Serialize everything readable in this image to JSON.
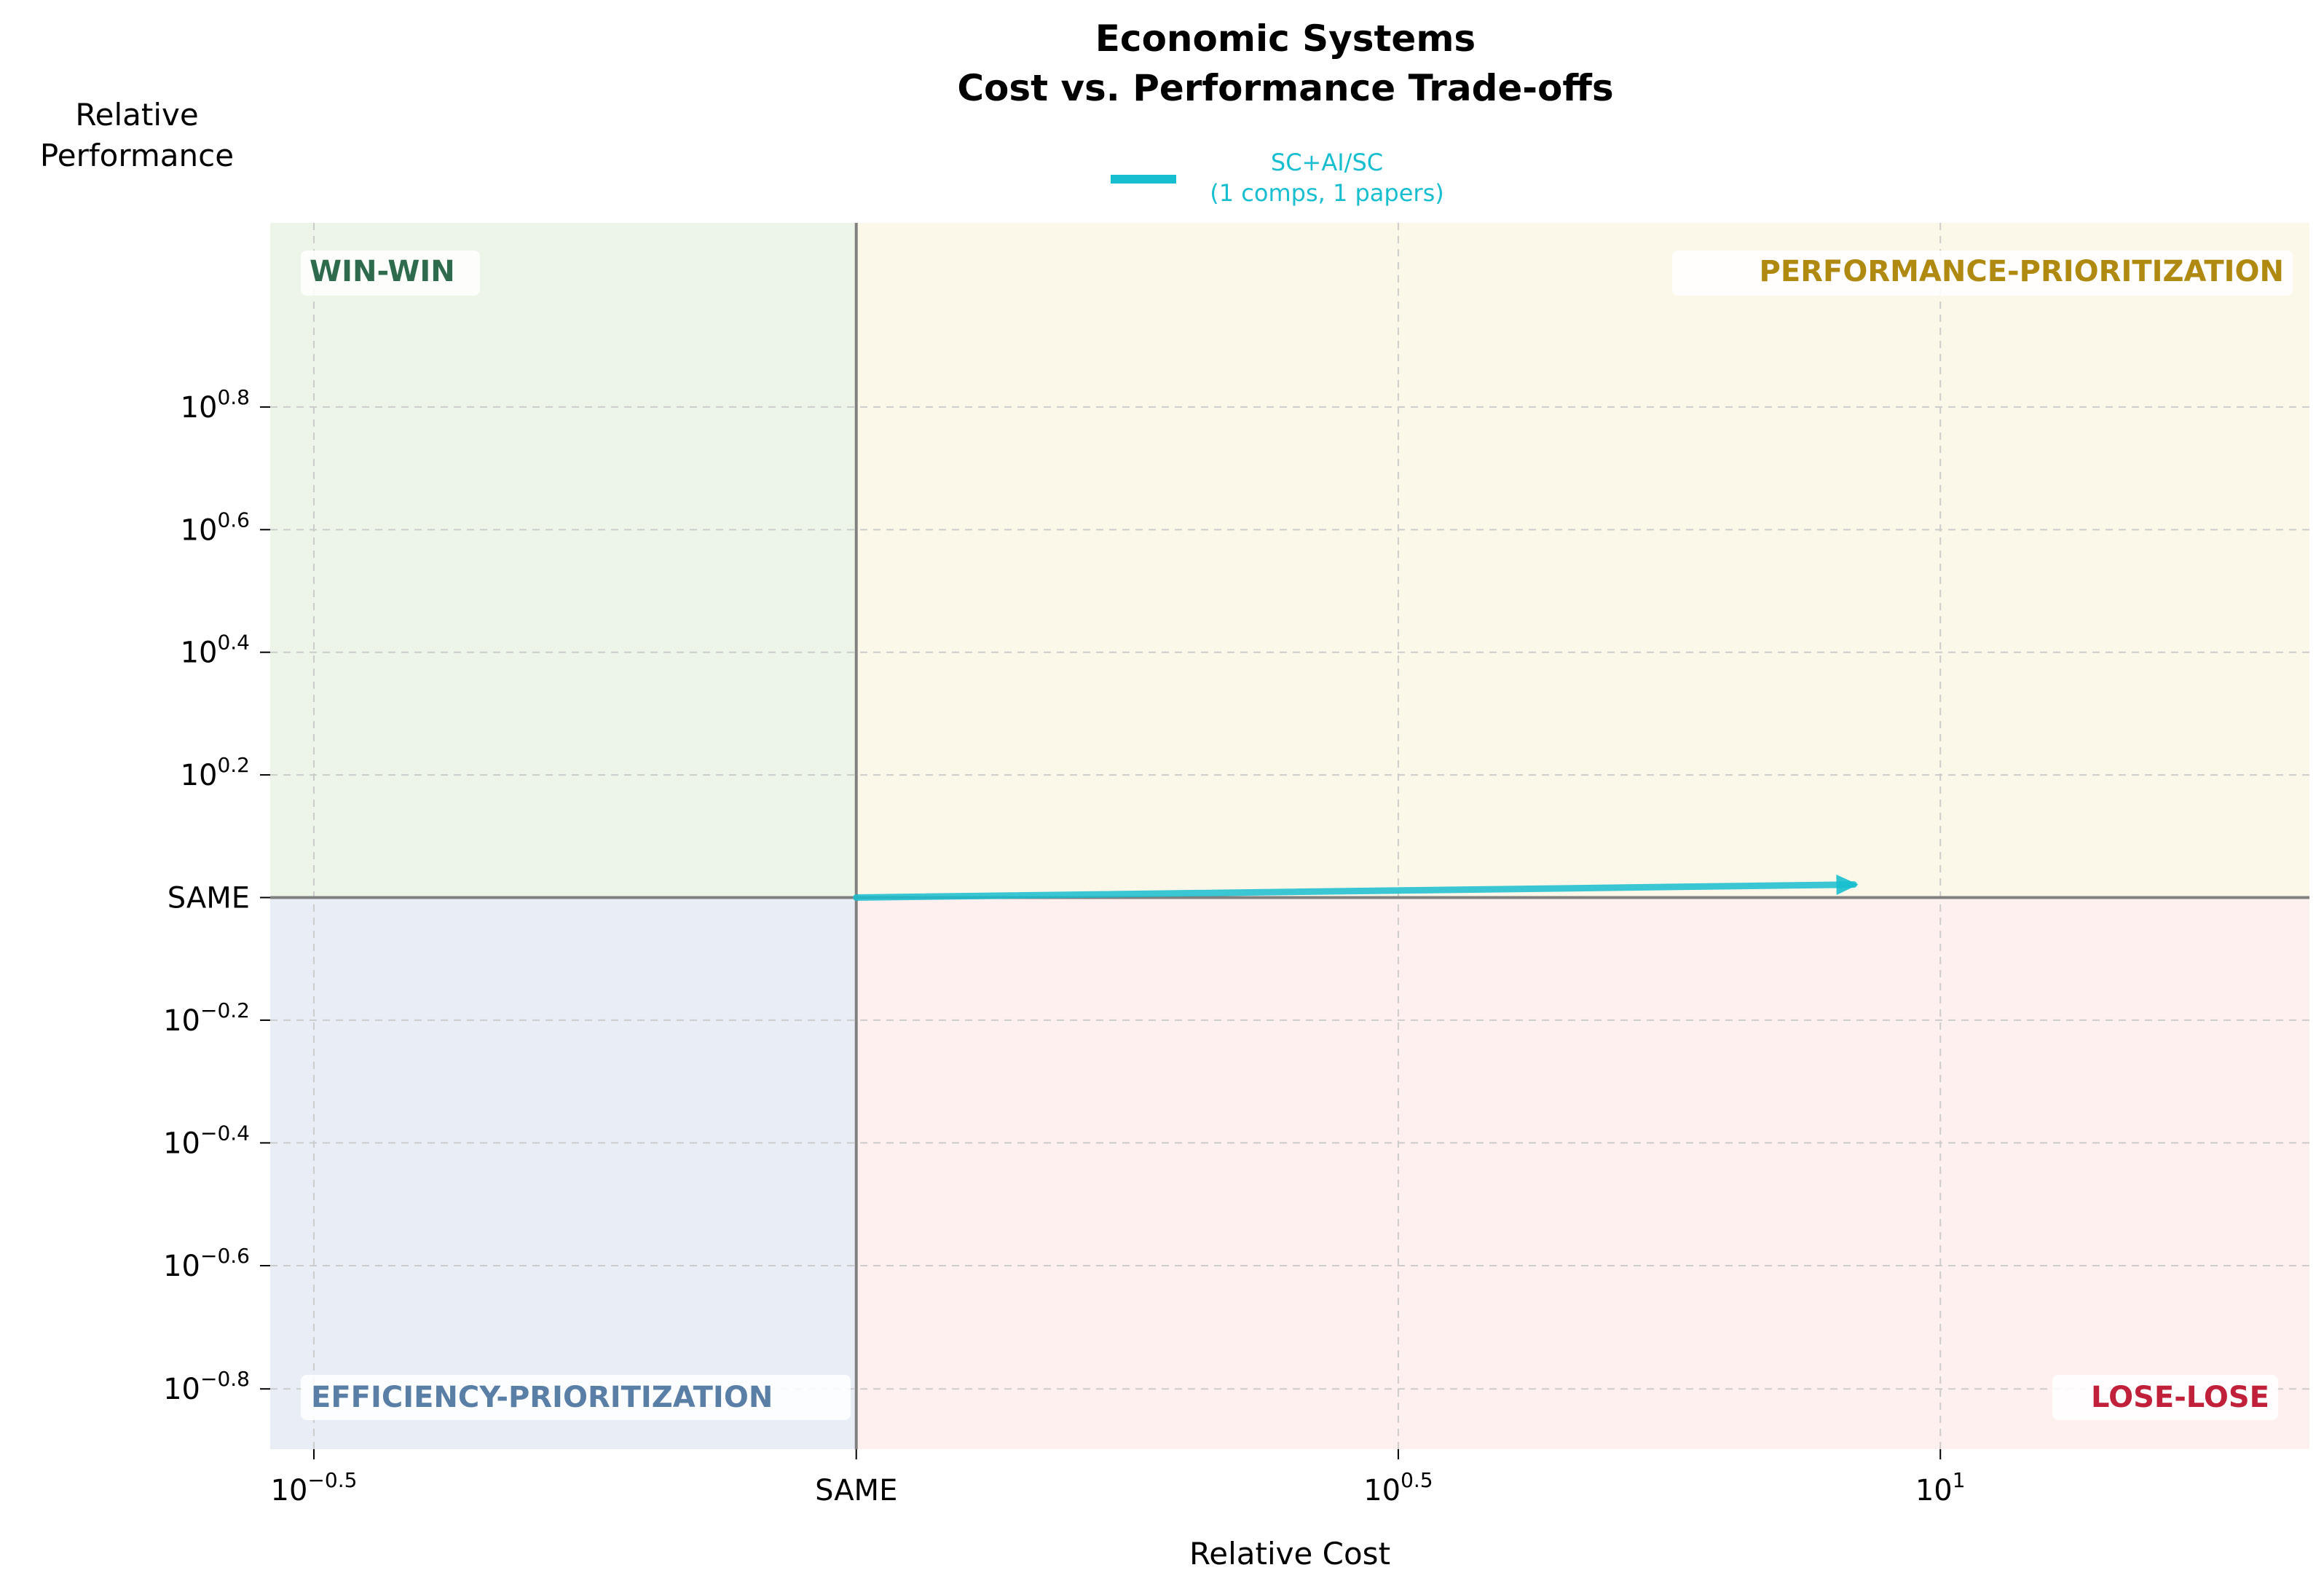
{
  "title_line1": "Economic Systems",
  "title_line2": "Cost vs. Performance Trade-offs",
  "legend": {
    "line1": "SC+AI/SC",
    "line2": "(1 comps, 1 papers)"
  },
  "quadrants": {
    "top_left": "WIN-WIN",
    "top_right": "PERFORMANCE-PRIORITIZATION",
    "bottom_left": "EFFICIENCY-PRIORITIZATION",
    "bottom_right": "LOSE-LOSE"
  },
  "colors": {
    "series": "#17becf",
    "win_win_bg": "#edf5e8",
    "perf_bg": "#fbf8ea",
    "eff_bg": "#e9eef6",
    "lose_bg": "#fff0f0",
    "win_win_text": "#2e6b4d",
    "perf_text": "#b08a10",
    "eff_text": "#5a7fa6",
    "lose_text": "#c0203a"
  },
  "chart_data": {
    "type": "line",
    "title": "Economic Systems\nCost vs. Performance Trade-offs",
    "xlabel": "Relative Cost",
    "ylabel": "Relative\nPerformance",
    "x_scale": "log10",
    "y_scale": "log10",
    "xlim": [
      0.288,
      21.9
    ],
    "ylim": [
      0.126,
      12.6
    ],
    "x_ticks": [
      {
        "value": 0.316,
        "label_base": "10",
        "label_exp": "−0.5"
      },
      {
        "value": 1,
        "label_base": "SAME",
        "label_exp": ""
      },
      {
        "value": 3.162,
        "label_base": "10",
        "label_exp": "0.5"
      },
      {
        "value": 10,
        "label_base": "10",
        "label_exp": "1"
      }
    ],
    "y_ticks": [
      {
        "value": 6.31,
        "label_base": "10",
        "label_exp": "0.8"
      },
      {
        "value": 3.981,
        "label_base": "10",
        "label_exp": "0.6"
      },
      {
        "value": 2.512,
        "label_base": "10",
        "label_exp": "0.4"
      },
      {
        "value": 1.585,
        "label_base": "10",
        "label_exp": "0.2"
      },
      {
        "value": 1,
        "label_base": "SAME",
        "label_exp": ""
      },
      {
        "value": 0.631,
        "label_base": "10",
        "label_exp": "−0.2"
      },
      {
        "value": 0.398,
        "label_base": "10",
        "label_exp": "−0.4"
      },
      {
        "value": 0.251,
        "label_base": "10",
        "label_exp": "−0.6"
      },
      {
        "value": 0.158,
        "label_base": "10",
        "label_exp": "−0.8"
      }
    ],
    "grid": true,
    "legend_position": "top-center",
    "series": [
      {
        "name": "SC+AI/SC",
        "style": "arrow",
        "points": [
          {
            "x": 1,
            "y": 1
          },
          {
            "x": 8.4,
            "y": 1.05
          }
        ]
      }
    ]
  }
}
